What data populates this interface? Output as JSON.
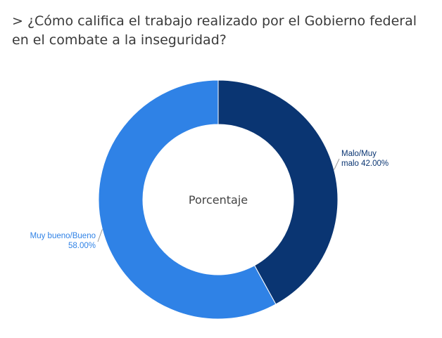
{
  "header": {
    "title": "> ¿Cómo califica el trabajo realizado por el Gobierno federal en el combate a la inseguridad?"
  },
  "chart_data": {
    "type": "pie",
    "donut": true,
    "center_label": "Porcentaje",
    "categories": [
      "Malo/Muy malo",
      "Muy bueno/Bueno"
    ],
    "values": [
      42.0,
      58.0
    ],
    "unit": "%",
    "slices": [
      {
        "category": "Malo/Muy malo",
        "value": 42.0,
        "color": "#0a3572",
        "label_lines": [
          "Malo/Muy",
          "malo 42.00%"
        ]
      },
      {
        "category": "Muy bueno/Bueno",
        "value": 58.0,
        "color": "#2f82e6",
        "label_lines": [
          "Muy bueno/Bueno",
          "58.00%"
        ]
      }
    ],
    "start_angle_deg": 0,
    "direction": "clockwise",
    "legend": "none"
  }
}
